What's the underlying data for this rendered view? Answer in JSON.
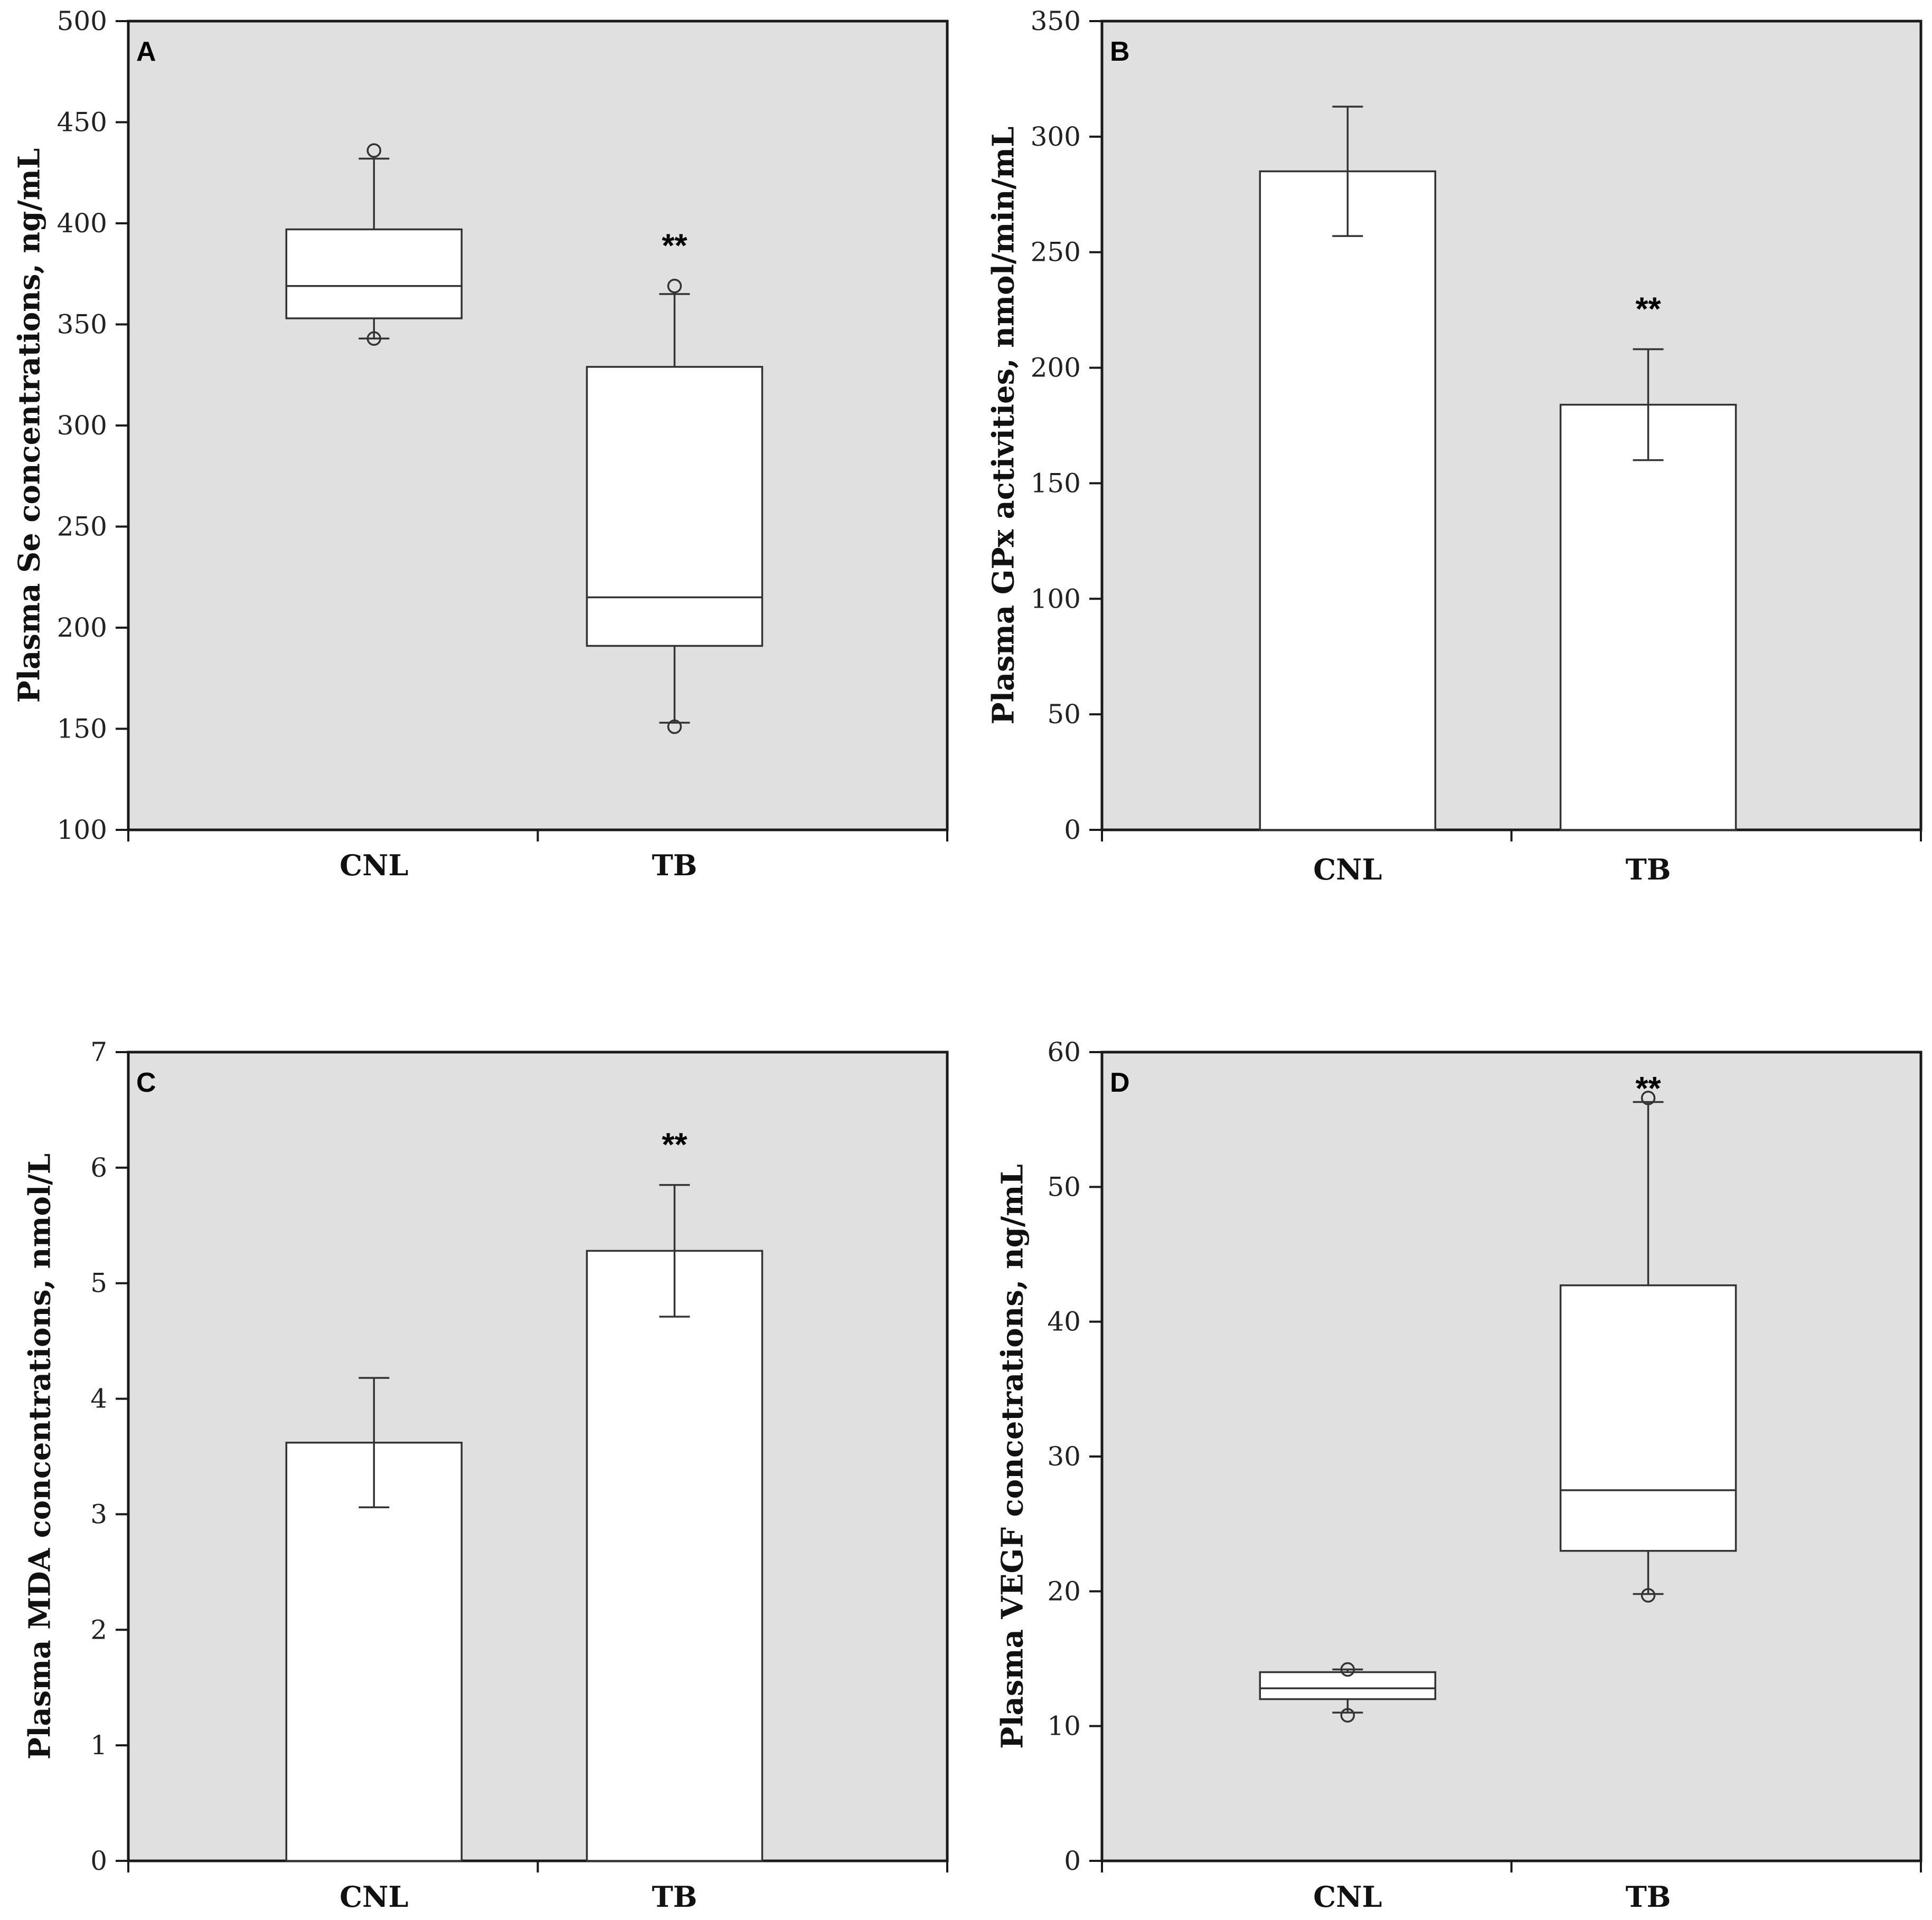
{
  "chart_data": [
    {
      "panel": "A",
      "type": "box",
      "categories": [
        "CNL",
        "TB"
      ],
      "ylabel": "Plasma Se concentrations, ng/mL",
      "ylim": [
        100,
        500
      ],
      "yticks": [
        100,
        150,
        200,
        250,
        300,
        350,
        400,
        450,
        500
      ],
      "grid": false,
      "boxes": [
        {
          "category": "CNL",
          "q1": 353,
          "median": 369,
          "q3": 397,
          "whisker_low": 343,
          "whisker_high": 432,
          "outliers": [
            343,
            436
          ]
        },
        {
          "category": "TB",
          "q1": 191,
          "median": 215,
          "q3": 329,
          "whisker_low": 153,
          "whisker_high": 365,
          "outliers": [
            151,
            369
          ]
        }
      ],
      "annotations": [
        {
          "category": "TB",
          "text": "**"
        }
      ]
    },
    {
      "panel": "B",
      "type": "bar",
      "categories": [
        "CNL",
        "TB"
      ],
      "values": [
        285,
        184
      ],
      "errors": [
        28,
        24
      ],
      "ylabel": "Plasma GPx activities, nmol/min/mL",
      "ylim": [
        0,
        350
      ],
      "yticks": [
        0,
        50,
        100,
        150,
        200,
        250,
        300,
        350
      ],
      "grid": false,
      "annotations": [
        {
          "category": "TB",
          "text": "**"
        }
      ]
    },
    {
      "panel": "C",
      "type": "bar",
      "categories": [
        "CNL",
        "TB"
      ],
      "values": [
        3.62,
        5.28
      ],
      "errors": [
        0.56,
        0.57
      ],
      "ylabel": "Plasma MDA concentrations, nmol/L",
      "ylim": [
        0,
        7
      ],
      "yticks": [
        0,
        1,
        2,
        3,
        4,
        5,
        6,
        7
      ],
      "grid": false,
      "annotations": [
        {
          "category": "TB",
          "text": "**"
        }
      ]
    },
    {
      "panel": "D",
      "type": "box",
      "categories": [
        "CNL",
        "TB"
      ],
      "ylabel": "Plasma VEGF concetrations, ng/mL",
      "ylim": [
        0,
        60
      ],
      "yticks": [
        0,
        10,
        20,
        30,
        40,
        50,
        60
      ],
      "grid": false,
      "boxes": [
        {
          "category": "CNL",
          "q1": 12.0,
          "median": 12.8,
          "q3": 14.0,
          "whisker_low": 11.0,
          "whisker_high": 14.2,
          "outliers": [
            10.8,
            14.2
          ]
        },
        {
          "category": "TB",
          "q1": 23.0,
          "median": 27.5,
          "q3": 42.7,
          "whisker_low": 19.8,
          "whisker_high": 56.3,
          "outliers": [
            19.7,
            56.6
          ]
        }
      ],
      "annotations": [
        {
          "category": "TB",
          "text": "**"
        }
      ]
    }
  ],
  "colors": {
    "plot_background": "#e0e0e0",
    "frame": "#1a1a1a",
    "box_fill": "#ffffff",
    "line": "#333333"
  }
}
